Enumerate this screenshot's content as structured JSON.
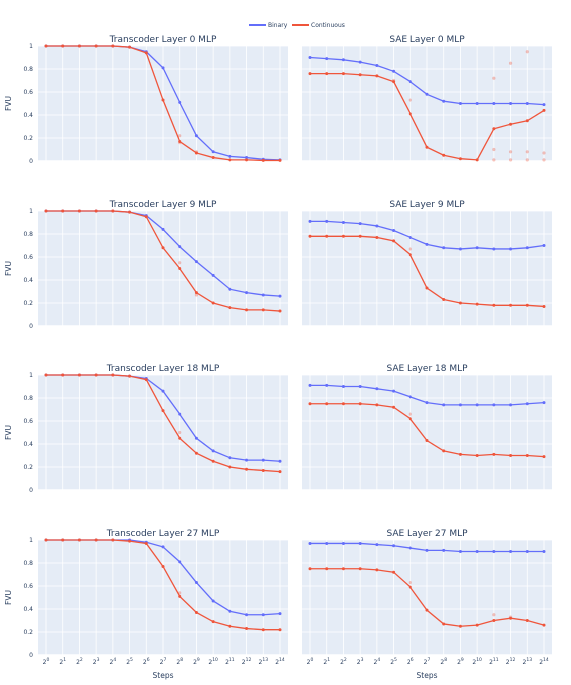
{
  "legend": {
    "items": [
      {
        "label": "Binary",
        "color": "#636efa"
      },
      {
        "label": "Continuous",
        "color": "#ef553b"
      }
    ]
  },
  "colors": {
    "binary": "#636efa",
    "continuous": "#ef553b",
    "plot_bg": "#e5ecf6",
    "grid": "#ffffff"
  },
  "chart_data": [
    {
      "type": "line",
      "title": "Transcoder Layer 0 MLP",
      "xlabel": "",
      "ylabel": "FVU",
      "x": [
        0,
        1,
        2,
        3,
        4,
        5,
        6,
        7,
        8,
        9,
        10,
        11,
        12,
        13,
        14
      ],
      "x_tick_labels": [
        "2^0",
        "2^1",
        "2^2",
        "2^3",
        "2^4",
        "2^5",
        "2^6",
        "2^7",
        "2^8",
        "2^9",
        "2^10",
        "2^11",
        "2^12",
        "2^13",
        "2^14"
      ],
      "ylim": [
        0,
        1
      ],
      "y_ticks": [
        "0",
        "0.2",
        "0.4",
        "0.6",
        "0.8",
        "1"
      ],
      "series": [
        {
          "name": "Binary",
          "values": [
            1.0,
            1.0,
            1.0,
            1.0,
            1.0,
            0.99,
            0.95,
            0.81,
            0.51,
            0.22,
            0.08,
            0.04,
            0.03,
            0.015,
            0.01
          ]
        },
        {
          "name": "Continuous",
          "values": [
            1.0,
            1.0,
            1.0,
            1.0,
            1.0,
            0.99,
            0.94,
            0.53,
            0.17,
            0.07,
            0.03,
            0.01,
            0.01,
            0.005,
            0.005
          ]
        }
      ],
      "scatter_points": [
        [
          8,
          0.22
        ],
        [
          8,
          0.16
        ],
        [
          9,
          0.08
        ]
      ]
    },
    {
      "type": "line",
      "title": "SAE Layer 0 MLP",
      "xlabel": "",
      "ylabel": "",
      "x": [
        0,
        1,
        2,
        3,
        4,
        5,
        6,
        7,
        8,
        9,
        10,
        11,
        12,
        13,
        14
      ],
      "ylim": [
        0,
        1
      ],
      "series": [
        {
          "name": "Binary",
          "values": [
            0.9,
            0.89,
            0.88,
            0.86,
            0.83,
            0.78,
            0.69,
            0.58,
            0.52,
            0.5,
            0.5,
            0.5,
            0.5,
            0.5,
            0.49
          ]
        },
        {
          "name": "Continuous",
          "values": [
            0.76,
            0.76,
            0.76,
            0.75,
            0.74,
            0.69,
            0.41,
            0.12,
            0.05,
            0.02,
            0.01,
            0.28,
            0.32,
            0.35,
            0.44
          ]
        }
      ],
      "scatter_points": [
        [
          5,
          0.7
        ],
        [
          6,
          0.53
        ],
        [
          11,
          0.72
        ],
        [
          12,
          0.85
        ],
        [
          13,
          0.95
        ],
        [
          11,
          0.1
        ],
        [
          12,
          0.08
        ],
        [
          13,
          0.08
        ],
        [
          14,
          0.07
        ],
        [
          11,
          0.01
        ],
        [
          12,
          0.01
        ],
        [
          13,
          0.01
        ],
        [
          14,
          0.01
        ]
      ]
    },
    {
      "type": "line",
      "title": "Transcoder Layer 9 MLP",
      "xlabel": "",
      "ylabel": "FVU",
      "x": [
        0,
        1,
        2,
        3,
        4,
        5,
        6,
        7,
        8,
        9,
        10,
        11,
        12,
        13,
        14
      ],
      "ylim": [
        0,
        1
      ],
      "y_ticks": [
        "0",
        "0.2",
        "0.4",
        "0.6",
        "0.8",
        "1"
      ],
      "series": [
        {
          "name": "Binary",
          "values": [
            1.0,
            1.0,
            1.0,
            1.0,
            1.0,
            0.99,
            0.96,
            0.84,
            0.69,
            0.56,
            0.44,
            0.32,
            0.29,
            0.27,
            0.26
          ]
        },
        {
          "name": "Continuous",
          "values": [
            1.0,
            1.0,
            1.0,
            1.0,
            1.0,
            0.99,
            0.95,
            0.68,
            0.5,
            0.29,
            0.2,
            0.16,
            0.14,
            0.14,
            0.13
          ]
        }
      ],
      "scatter_points": [
        [
          8,
          0.55
        ],
        [
          9,
          0.27
        ]
      ]
    },
    {
      "type": "line",
      "title": "SAE Layer 9 MLP",
      "xlabel": "",
      "ylabel": "",
      "x": [
        0,
        1,
        2,
        3,
        4,
        5,
        6,
        7,
        8,
        9,
        10,
        11,
        12,
        13,
        14
      ],
      "ylim": [
        0,
        1
      ],
      "series": [
        {
          "name": "Binary",
          "values": [
            0.91,
            0.91,
            0.9,
            0.89,
            0.87,
            0.83,
            0.77,
            0.71,
            0.68,
            0.67,
            0.68,
            0.67,
            0.67,
            0.68,
            0.7
          ]
        },
        {
          "name": "Continuous",
          "values": [
            0.78,
            0.78,
            0.78,
            0.78,
            0.77,
            0.74,
            0.62,
            0.33,
            0.23,
            0.2,
            0.19,
            0.18,
            0.18,
            0.18,
            0.17
          ]
        }
      ],
      "scatter_points": [
        [
          6,
          0.67
        ]
      ]
    },
    {
      "type": "line",
      "title": "Transcoder Layer 18 MLP",
      "xlabel": "",
      "ylabel": "FVU",
      "x": [
        0,
        1,
        2,
        3,
        4,
        5,
        6,
        7,
        8,
        9,
        10,
        11,
        12,
        13,
        14
      ],
      "ylim": [
        0,
        1
      ],
      "y_ticks": [
        "0",
        "0.2",
        "0.4",
        "0.6",
        "0.8",
        "1"
      ],
      "series": [
        {
          "name": "Binary",
          "values": [
            1.0,
            1.0,
            1.0,
            1.0,
            1.0,
            0.99,
            0.97,
            0.86,
            0.66,
            0.45,
            0.34,
            0.28,
            0.26,
            0.26,
            0.25
          ]
        },
        {
          "name": "Continuous",
          "values": [
            1.0,
            1.0,
            1.0,
            1.0,
            1.0,
            0.99,
            0.96,
            0.69,
            0.45,
            0.32,
            0.25,
            0.2,
            0.18,
            0.17,
            0.16
          ]
        }
      ],
      "scatter_points": [
        [
          8,
          0.5
        ]
      ]
    },
    {
      "type": "line",
      "title": "SAE Layer 18 MLP",
      "xlabel": "",
      "ylabel": "",
      "x": [
        0,
        1,
        2,
        3,
        4,
        5,
        6,
        7,
        8,
        9,
        10,
        11,
        12,
        13,
        14
      ],
      "ylim": [
        0,
        1
      ],
      "series": [
        {
          "name": "Binary",
          "values": [
            0.91,
            0.91,
            0.9,
            0.9,
            0.88,
            0.86,
            0.81,
            0.76,
            0.74,
            0.74,
            0.74,
            0.74,
            0.74,
            0.75,
            0.76
          ]
        },
        {
          "name": "Continuous",
          "values": [
            0.75,
            0.75,
            0.75,
            0.75,
            0.74,
            0.72,
            0.62,
            0.43,
            0.34,
            0.31,
            0.3,
            0.31,
            0.3,
            0.3,
            0.29
          ]
        }
      ],
      "scatter_points": [
        [
          6,
          0.66
        ]
      ]
    },
    {
      "type": "line",
      "title": "Transcoder Layer 27 MLP",
      "xlabel": "Steps",
      "ylabel": "FVU",
      "x": [
        0,
        1,
        2,
        3,
        4,
        5,
        6,
        7,
        8,
        9,
        10,
        11,
        12,
        13,
        14
      ],
      "x_tick_labels": [
        "2^0",
        "2^1",
        "2^2",
        "2^3",
        "2^4",
        "2^5",
        "2^6",
        "2^7",
        "2^8",
        "2^9",
        "2^10",
        "2^11",
        "2^12",
        "2^13",
        "2^14"
      ],
      "ylim": [
        0,
        1
      ],
      "y_ticks": [
        "0",
        "0.2",
        "0.4",
        "0.6",
        "0.8",
        "1"
      ],
      "series": [
        {
          "name": "Binary",
          "values": [
            1.0,
            1.0,
            1.0,
            1.0,
            1.0,
            1.0,
            0.98,
            0.94,
            0.81,
            0.63,
            0.47,
            0.38,
            0.35,
            0.35,
            0.36
          ]
        },
        {
          "name": "Continuous",
          "values": [
            1.0,
            1.0,
            1.0,
            1.0,
            1.0,
            0.99,
            0.97,
            0.77,
            0.51,
            0.37,
            0.29,
            0.25,
            0.23,
            0.22,
            0.22
          ]
        }
      ],
      "scatter_points": [
        [
          8,
          0.54
        ]
      ]
    },
    {
      "type": "line",
      "title": "SAE Layer 27 MLP",
      "xlabel": "Steps",
      "ylabel": "",
      "x": [
        0,
        1,
        2,
        3,
        4,
        5,
        6,
        7,
        8,
        9,
        10,
        11,
        12,
        13,
        14
      ],
      "x_tick_labels": [
        "2^0",
        "2^1",
        "2^2",
        "2^3",
        "2^4",
        "2^5",
        "2^6",
        "2^7",
        "2^8",
        "2^9",
        "2^10",
        "2^11",
        "2^12",
        "2^13",
        "2^14"
      ],
      "ylim": [
        0,
        1
      ],
      "series": [
        {
          "name": "Binary",
          "values": [
            0.97,
            0.97,
            0.97,
            0.97,
            0.96,
            0.95,
            0.93,
            0.91,
            0.91,
            0.9,
            0.9,
            0.9,
            0.9,
            0.9,
            0.9
          ]
        },
        {
          "name": "Continuous",
          "values": [
            0.75,
            0.75,
            0.75,
            0.75,
            0.74,
            0.72,
            0.59,
            0.39,
            0.27,
            0.25,
            0.26,
            0.3,
            0.32,
            0.3,
            0.26
          ]
        }
      ],
      "scatter_points": [
        [
          6,
          0.63
        ],
        [
          11,
          0.35
        ],
        [
          12,
          0.33
        ]
      ]
    }
  ]
}
